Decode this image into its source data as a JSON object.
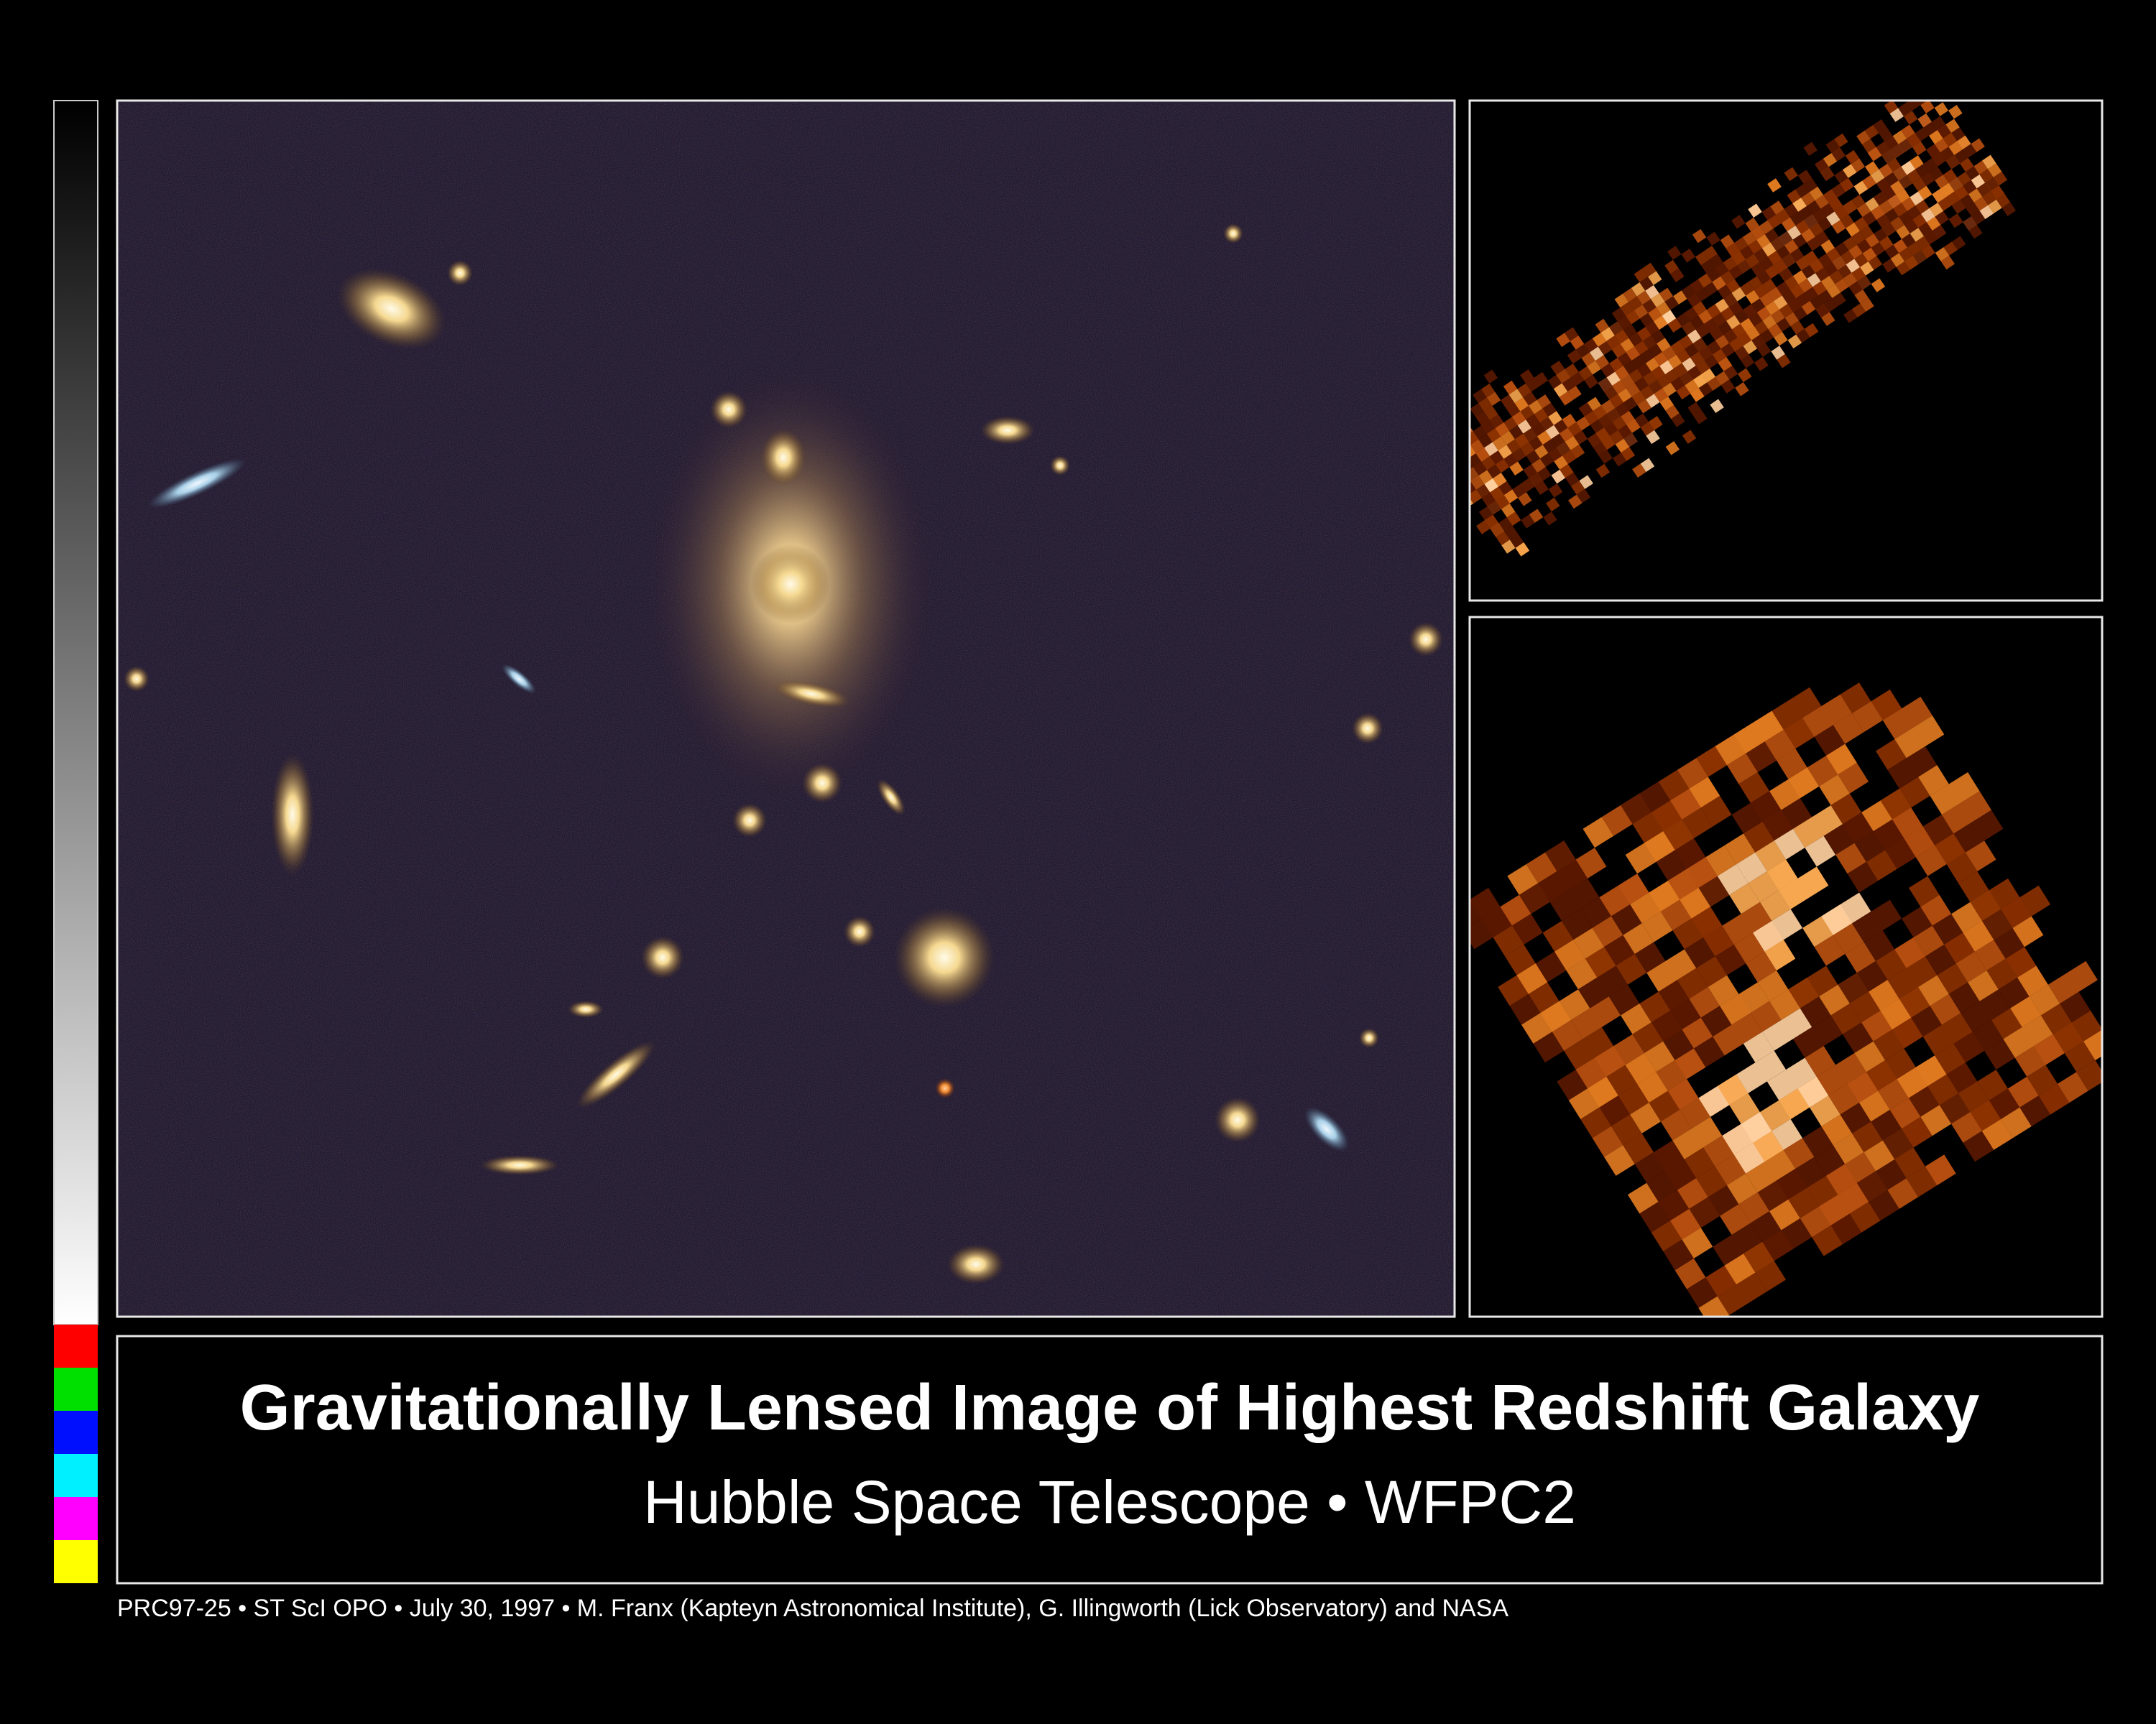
{
  "title": "Gravitationally Lensed Image of Highest Redshift Galaxy",
  "subtitle": "Hubble Space Telescope • WFPC2",
  "credit": "PRC97-25 • ST ScI OPO • July 30, 1997 • M. Franx (Kapteyn Astronomical Institute), G. Illingworth (Lick Observatory)  and NASA"
}
